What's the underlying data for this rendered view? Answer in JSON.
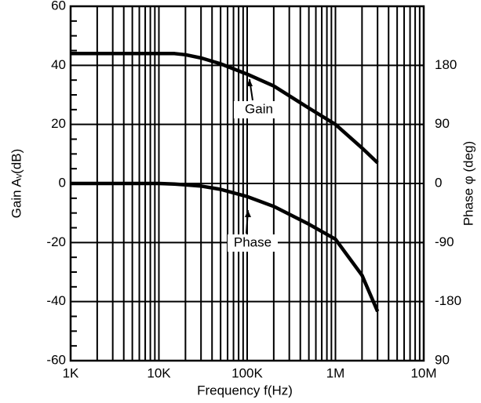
{
  "chart_data": {
    "type": "line",
    "xlabel": "Frequency f(Hz)",
    "ylabel": "Gain Aᵥ(dB)",
    "y2label": "Phase φ (deg)",
    "x": [
      1000,
      2000,
      5000,
      10000,
      15000,
      20000,
      30000,
      50000,
      100000,
      200000,
      500000,
      1000000,
      2000000,
      3000000
    ],
    "series": [
      {
        "name": "Gain",
        "color": "#000000",
        "values": [
          44,
          44,
          44,
          44,
          44,
          43.6,
          42.5,
          40.5,
          37,
          33,
          25.5,
          20,
          12,
          7
        ]
      },
      {
        "name": "Phase",
        "color": "#000000",
        "axis": "y2",
        "values": [
          0,
          0,
          0,
          0,
          -1,
          -2,
          -4,
          -9,
          -20,
          -35,
          -62,
          -85,
          -140,
          -195
        ]
      }
    ],
    "annotations": [
      "Gain",
      "Phase"
    ],
    "xscale": "log",
    "xlim": [
      1000,
      10000000
    ],
    "xticks": [
      {
        "value": 1000,
        "label": "1K"
      },
      {
        "value": 10000,
        "label": "10K"
      },
      {
        "value": 100000,
        "label": "100K"
      },
      {
        "value": 1000000,
        "label": "1M"
      },
      {
        "value": 10000000,
        "label": "10M"
      }
    ],
    "ylim": [
      -60,
      60
    ],
    "yticks": [
      -60,
      -40,
      -20,
      0,
      20,
      40,
      60
    ],
    "y2lim": [
      -270,
      270
    ],
    "y2ticks": [
      {
        "value": -270,
        "label": "90"
      },
      -180,
      -90,
      0,
      90,
      180
    ],
    "grid": true
  }
}
